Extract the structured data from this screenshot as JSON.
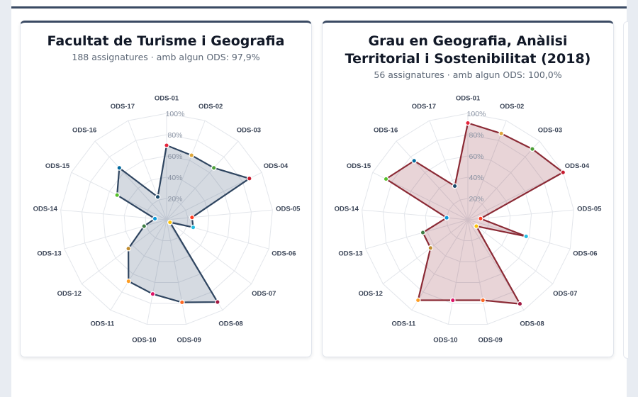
{
  "charts": [
    {
      "title": "Facultat de Turisme i Geografia",
      "subtitle": "188 assignatures · amb algun ODS: 97,9%",
      "line_color": "#2f4560",
      "fill_color": "rgba(66,86,118,0.22)"
    },
    {
      "title": "Grau en Geografia, Anàlisi Territorial i Sostenibilitat (2018)",
      "subtitle": "56 assignatures · amb algun ODS: 100,0%",
      "line_color": "#8b2a35",
      "fill_color": "rgba(139,42,53,0.20)"
    }
  ],
  "chart_data": [
    {
      "type": "radar",
      "title": "Facultat de Turisme i Geografia",
      "subtitle": "188 assignatures · amb algun ODS: 97,9%",
      "categories": [
        "ODS-01",
        "ODS-02",
        "ODS-03",
        "ODS-04",
        "ODS-05",
        "ODS-06",
        "ODS-07",
        "ODS-08",
        "ODS-09",
        "ODS-10",
        "ODS-11",
        "ODS-12",
        "ODS-13",
        "ODS-14",
        "ODS-15",
        "ODS-16",
        "ODS-17"
      ],
      "values": [
        70,
        65,
        66,
        87,
        24,
        26,
        4,
        91,
        79,
        71,
        68,
        45,
        22,
        11,
        52,
        66,
        23
      ],
      "rlim": [
        0,
        100
      ],
      "rticks": [
        "20%",
        "40%",
        "60%",
        "80%",
        "100%"
      ],
      "grid": true,
      "legend": "none"
    },
    {
      "type": "radar",
      "title": "Grau en Geografia, Anàlisi Territorial i Sostenibilitat (2018)",
      "subtitle": "56 assignatures · amb algun ODS: 100,0%",
      "categories": [
        "ODS-01",
        "ODS-02",
        "ODS-03",
        "ODS-04",
        "ODS-05",
        "ODS-06",
        "ODS-07",
        "ODS-08",
        "ODS-09",
        "ODS-10",
        "ODS-11",
        "ODS-12",
        "ODS-13",
        "ODS-14",
        "ODS-15",
        "ODS-16",
        "ODS-17"
      ],
      "values": [
        91,
        87,
        90,
        100,
        12,
        57,
        10,
        93,
        77,
        77,
        89,
        44,
        44,
        20,
        86,
        75,
        34
      ],
      "rlim": [
        0,
        100
      ],
      "rticks": [
        "20%",
        "40%",
        "60%",
        "80%",
        "100%"
      ],
      "grid": true,
      "legend": "none"
    }
  ],
  "sdg_colors": [
    "#e5243b",
    "#dda63a",
    "#4c9f38",
    "#c5192d",
    "#ff3a21",
    "#26bde2",
    "#fcc30b",
    "#a21942",
    "#fd6925",
    "#dd1367",
    "#fd9d24",
    "#bf8b2e",
    "#3f7e44",
    "#0a97d9",
    "#56c02b",
    "#00689d",
    "#19486a"
  ]
}
